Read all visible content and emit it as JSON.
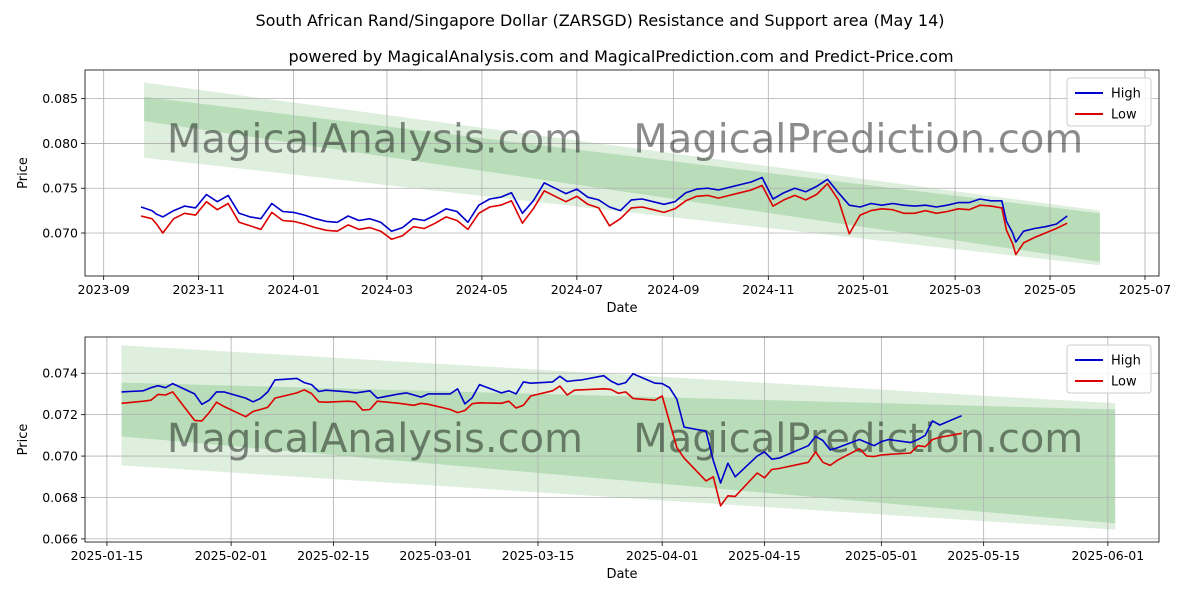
{
  "figure": {
    "title": "South African Rand/Singapore Dollar (ZARSGD) Resistance and Support area (May 14)",
    "subtitle": "powered by MagicalAnalysis.com and MagicalPrediction.com and Predict-Price.com",
    "watermarks": [
      "MagicalAnalysis.com",
      "MagicalPrediction.com"
    ]
  },
  "colors": {
    "high": "#0000cc",
    "low": "#dd0000",
    "band": "#6ab86a"
  },
  "chart_data": [
    {
      "type": "line",
      "name": "full-history",
      "xlabel": "Date",
      "ylabel": "Price",
      "x_ticks": [
        "2023-09",
        "2023-11",
        "2024-01",
        "2024-03",
        "2024-05",
        "2024-07",
        "2024-09",
        "2024-11",
        "2025-01",
        "2025-03",
        "2025-05",
        "2025-07"
      ],
      "y_ticks": [
        "0.070",
        "0.075",
        "0.080",
        "0.085"
      ],
      "xlim": [
        "2023-08-20",
        "2025-07-10"
      ],
      "ylim": [
        0.0652,
        0.0882
      ],
      "legend": {
        "position": "top-right",
        "entries": [
          "High",
          "Low"
        ]
      },
      "grid": true,
      "series": [
        {
          "name": "High",
          "x": [
            "2023-09-25",
            "2023-10-02",
            "2023-10-05",
            "2023-10-09",
            "2023-10-16",
            "2023-10-23",
            "2023-10-30",
            "2023-11-06",
            "2023-11-13",
            "2023-11-20",
            "2023-11-27",
            "2023-12-04",
            "2023-12-11",
            "2023-12-18",
            "2023-12-25",
            "2024-01-01",
            "2024-01-08",
            "2024-01-15",
            "2024-01-22",
            "2024-01-29",
            "2024-02-05",
            "2024-02-12",
            "2024-02-19",
            "2024-02-26",
            "2024-03-04",
            "2024-03-11",
            "2024-03-18",
            "2024-03-25",
            "2024-04-01",
            "2024-04-08",
            "2024-04-15",
            "2024-04-22",
            "2024-04-29",
            "2024-05-06",
            "2024-05-13",
            "2024-05-20",
            "2024-05-27",
            "2024-06-03",
            "2024-06-10",
            "2024-06-17",
            "2024-06-24",
            "2024-07-01",
            "2024-07-08",
            "2024-07-15",
            "2024-07-22",
            "2024-07-29",
            "2024-08-05",
            "2024-08-12",
            "2024-08-19",
            "2024-08-26",
            "2024-09-02",
            "2024-09-09",
            "2024-09-16",
            "2024-09-23",
            "2024-09-30",
            "2024-10-07",
            "2024-10-14",
            "2024-10-21",
            "2024-10-28",
            "2024-11-04",
            "2024-11-11",
            "2024-11-18",
            "2024-11-25",
            "2024-12-02",
            "2024-12-09",
            "2024-12-16",
            "2024-12-23",
            "2024-12-30",
            "2025-01-06",
            "2025-01-13",
            "2025-01-20",
            "2025-01-27",
            "2025-02-03",
            "2025-02-10",
            "2025-02-17",
            "2025-02-24",
            "2025-03-03",
            "2025-03-10",
            "2025-03-17",
            "2025-03-24",
            "2025-03-31",
            "2025-04-03",
            "2025-04-07",
            "2025-04-09",
            "2025-04-14",
            "2025-04-21",
            "2025-04-28",
            "2025-05-05",
            "2025-05-12"
          ],
          "values": [
            0.0729,
            0.0725,
            0.0721,
            0.0718,
            0.0725,
            0.073,
            0.0728,
            0.0743,
            0.0735,
            0.0742,
            0.0722,
            0.0718,
            0.0716,
            0.0733,
            0.0724,
            0.0723,
            0.072,
            0.0716,
            0.0713,
            0.0712,
            0.0719,
            0.0714,
            0.0716,
            0.0712,
            0.0702,
            0.0706,
            0.0716,
            0.0714,
            0.072,
            0.0727,
            0.0724,
            0.0712,
            0.0731,
            0.0738,
            0.074,
            0.0745,
            0.0722,
            0.0736,
            0.0756,
            0.075,
            0.0744,
            0.0749,
            0.074,
            0.0737,
            0.0729,
            0.0725,
            0.0737,
            0.0738,
            0.0735,
            0.0732,
            0.0735,
            0.0745,
            0.0749,
            0.075,
            0.0748,
            0.0751,
            0.0754,
            0.0757,
            0.0762,
            0.0738,
            0.0745,
            0.075,
            0.0746,
            0.0752,
            0.076,
            0.0745,
            0.0731,
            0.0729,
            0.0733,
            0.0731,
            0.0733,
            0.0731,
            0.073,
            0.0731,
            0.0729,
            0.0731,
            0.0734,
            0.0734,
            0.0738,
            0.0736,
            0.0736,
            0.0713,
            0.07,
            0.069,
            0.0702,
            0.0705,
            0.0707,
            0.071,
            0.0719
          ]
        },
        {
          "name": "Low",
          "x": [
            "2023-09-25",
            "2023-10-02",
            "2023-10-05",
            "2023-10-09",
            "2023-10-16",
            "2023-10-23",
            "2023-10-30",
            "2023-11-06",
            "2023-11-13",
            "2023-11-20",
            "2023-11-27",
            "2023-12-04",
            "2023-12-11",
            "2023-12-18",
            "2023-12-25",
            "2024-01-01",
            "2024-01-08",
            "2024-01-15",
            "2024-01-22",
            "2024-01-29",
            "2024-02-05",
            "2024-02-12",
            "2024-02-19",
            "2024-02-26",
            "2024-03-04",
            "2024-03-11",
            "2024-03-18",
            "2024-03-25",
            "2024-04-01",
            "2024-04-08",
            "2024-04-15",
            "2024-04-22",
            "2024-04-29",
            "2024-05-06",
            "2024-05-13",
            "2024-05-20",
            "2024-05-27",
            "2024-06-03",
            "2024-06-10",
            "2024-06-17",
            "2024-06-24",
            "2024-07-01",
            "2024-07-08",
            "2024-07-15",
            "2024-07-22",
            "2024-07-29",
            "2024-08-05",
            "2024-08-12",
            "2024-08-19",
            "2024-08-26",
            "2024-09-02",
            "2024-09-09",
            "2024-09-16",
            "2024-09-23",
            "2024-09-30",
            "2024-10-07",
            "2024-10-14",
            "2024-10-21",
            "2024-10-28",
            "2024-11-04",
            "2024-11-11",
            "2024-11-18",
            "2024-11-25",
            "2024-12-02",
            "2024-12-09",
            "2024-12-16",
            "2024-12-23",
            "2024-12-30",
            "2025-01-06",
            "2025-01-13",
            "2025-01-20",
            "2025-01-27",
            "2025-02-03",
            "2025-02-10",
            "2025-02-17",
            "2025-02-24",
            "2025-03-03",
            "2025-03-10",
            "2025-03-17",
            "2025-03-24",
            "2025-03-31",
            "2025-04-03",
            "2025-04-07",
            "2025-04-09",
            "2025-04-14",
            "2025-04-21",
            "2025-04-28",
            "2025-05-05",
            "2025-05-12"
          ],
          "values": [
            0.0719,
            0.0716,
            0.071,
            0.07,
            0.0716,
            0.0722,
            0.072,
            0.0735,
            0.0726,
            0.0733,
            0.0712,
            0.0708,
            0.0704,
            0.0723,
            0.0714,
            0.0713,
            0.071,
            0.0706,
            0.0703,
            0.0702,
            0.0709,
            0.0704,
            0.0706,
            0.0702,
            0.0693,
            0.0697,
            0.0707,
            0.0705,
            0.0711,
            0.0718,
            0.0714,
            0.0704,
            0.0722,
            0.0729,
            0.0731,
            0.0736,
            0.0711,
            0.0727,
            0.0747,
            0.0741,
            0.0735,
            0.0741,
            0.0732,
            0.0728,
            0.0708,
            0.0716,
            0.0728,
            0.0729,
            0.0726,
            0.0723,
            0.0727,
            0.0736,
            0.0741,
            0.0742,
            0.0739,
            0.0742,
            0.0745,
            0.0748,
            0.0753,
            0.073,
            0.0737,
            0.0742,
            0.0737,
            0.0743,
            0.0755,
            0.0737,
            0.0699,
            0.072,
            0.0725,
            0.0727,
            0.0726,
            0.0722,
            0.0722,
            0.0725,
            0.0722,
            0.0724,
            0.0727,
            0.0726,
            0.0731,
            0.073,
            0.0728,
            0.0703,
            0.0688,
            0.0676,
            0.0689,
            0.0695,
            0.07,
            0.0705,
            0.0711
          ]
        }
      ],
      "bands": [
        {
          "name": "outer",
          "x": [
            "2023-09-27",
            "2025-06-02"
          ],
          "upper": [
            0.0868,
            0.0725
          ],
          "lower": [
            0.0784,
            0.0664
          ]
        },
        {
          "name": "inner",
          "x": [
            "2023-09-27",
            "2025-06-02"
          ],
          "upper": [
            0.0852,
            0.0722
          ],
          "lower": [
            0.0825,
            0.0668
          ]
        }
      ]
    },
    {
      "type": "line",
      "name": "zoom",
      "xlabel": "Date",
      "ylabel": "Price",
      "x_ticks": [
        "2025-01-15",
        "2025-02-01",
        "2025-02-15",
        "2025-03-01",
        "2025-03-15",
        "2025-04-01",
        "2025-04-15",
        "2025-05-01",
        "2025-05-15",
        "2025-06-01"
      ],
      "y_ticks": [
        "0.066",
        "0.068",
        "0.070",
        "0.072",
        "0.074"
      ],
      "xlim": [
        "2025-01-12",
        "2025-06-08"
      ],
      "ylim": [
        0.06585,
        0.07575
      ],
      "legend": {
        "position": "top-right",
        "entries": [
          "High",
          "Low"
        ]
      },
      "grid": true,
      "series": [
        {
          "name": "High",
          "x": [
            "2025-01-17",
            "2025-01-20",
            "2025-01-21",
            "2025-01-22",
            "2025-01-23",
            "2025-01-24",
            "2025-01-27",
            "2025-01-28",
            "2025-01-29",
            "2025-01-30",
            "2025-01-31",
            "2025-02-03",
            "2025-02-04",
            "2025-02-05",
            "2025-02-06",
            "2025-02-07",
            "2025-02-10",
            "2025-02-11",
            "2025-02-12",
            "2025-02-13",
            "2025-02-14",
            "2025-02-17",
            "2025-02-18",
            "2025-02-19",
            "2025-02-20",
            "2025-02-21",
            "2025-02-24",
            "2025-02-25",
            "2025-02-26",
            "2025-02-27",
            "2025-02-28",
            "2025-03-03",
            "2025-03-04",
            "2025-03-05",
            "2025-03-06",
            "2025-03-07",
            "2025-03-10",
            "2025-03-11",
            "2025-03-12",
            "2025-03-13",
            "2025-03-14",
            "2025-03-17",
            "2025-03-18",
            "2025-03-19",
            "2025-03-20",
            "2025-03-21",
            "2025-03-24",
            "2025-03-25",
            "2025-03-26",
            "2025-03-27",
            "2025-03-28",
            "2025-03-31",
            "2025-04-01",
            "2025-04-02",
            "2025-04-03",
            "2025-04-04",
            "2025-04-07",
            "2025-04-08",
            "2025-04-09",
            "2025-04-10",
            "2025-04-11",
            "2025-04-14",
            "2025-04-15",
            "2025-04-16",
            "2025-04-17",
            "2025-04-21",
            "2025-04-22",
            "2025-04-23",
            "2025-04-24",
            "2025-04-25",
            "2025-04-28",
            "2025-04-29",
            "2025-04-30",
            "2025-05-01",
            "2025-05-02",
            "2025-05-05",
            "2025-05-06",
            "2025-05-07",
            "2025-05-08",
            "2025-05-09",
            "2025-05-12"
          ],
          "values": [
            0.0731,
            0.07315,
            0.0733,
            0.0734,
            0.0733,
            0.0735,
            0.073,
            0.0725,
            0.0727,
            0.0731,
            0.0731,
            0.0728,
            0.07262,
            0.07278,
            0.0731,
            0.07368,
            0.07375,
            0.07355,
            0.07345,
            0.07312,
            0.07318,
            0.0731,
            0.07305,
            0.0731,
            0.07315,
            0.0728,
            0.073,
            0.07305,
            0.07295,
            0.07285,
            0.073,
            0.073,
            0.07325,
            0.07252,
            0.07282,
            0.07345,
            0.07305,
            0.07315,
            0.073,
            0.07358,
            0.07352,
            0.07358,
            0.07385,
            0.0736,
            0.07365,
            0.07368,
            0.07388,
            0.07362,
            0.07345,
            0.07355,
            0.07398,
            0.07352,
            0.0735,
            0.0733,
            0.07275,
            0.0714,
            0.0712,
            0.06978,
            0.0687,
            0.06965,
            0.069,
            0.07,
            0.0702,
            0.06985,
            0.0699,
            0.0705,
            0.07095,
            0.07075,
            0.0703,
            0.0704,
            0.0708,
            0.07065,
            0.0705,
            0.0707,
            0.0708,
            0.07065,
            0.0708,
            0.071,
            0.0717,
            0.0715,
            0.07195
          ]
        },
        {
          "name": "Low",
          "x": [
            "2025-01-17",
            "2025-01-20",
            "2025-01-21",
            "2025-01-22",
            "2025-01-23",
            "2025-01-24",
            "2025-01-27",
            "2025-01-28",
            "2025-01-29",
            "2025-01-30",
            "2025-01-31",
            "2025-02-03",
            "2025-02-04",
            "2025-02-05",
            "2025-02-06",
            "2025-02-07",
            "2025-02-10",
            "2025-02-11",
            "2025-02-12",
            "2025-02-13",
            "2025-02-14",
            "2025-02-17",
            "2025-02-18",
            "2025-02-19",
            "2025-02-20",
            "2025-02-21",
            "2025-02-24",
            "2025-02-25",
            "2025-02-26",
            "2025-02-27",
            "2025-02-28",
            "2025-03-03",
            "2025-03-04",
            "2025-03-05",
            "2025-03-06",
            "2025-03-07",
            "2025-03-10",
            "2025-03-11",
            "2025-03-12",
            "2025-03-13",
            "2025-03-14",
            "2025-03-17",
            "2025-03-18",
            "2025-03-19",
            "2025-03-20",
            "2025-03-21",
            "2025-03-24",
            "2025-03-25",
            "2025-03-26",
            "2025-03-27",
            "2025-03-28",
            "2025-03-31",
            "2025-04-01",
            "2025-04-02",
            "2025-04-03",
            "2025-04-04",
            "2025-04-07",
            "2025-04-08",
            "2025-04-09",
            "2025-04-10",
            "2025-04-11",
            "2025-04-14",
            "2025-04-15",
            "2025-04-16",
            "2025-04-17",
            "2025-04-21",
            "2025-04-22",
            "2025-04-23",
            "2025-04-24",
            "2025-04-25",
            "2025-04-28",
            "2025-04-29",
            "2025-04-30",
            "2025-05-01",
            "2025-05-02",
            "2025-05-05",
            "2025-05-06",
            "2025-05-07",
            "2025-05-08",
            "2025-05-09",
            "2025-05-12"
          ],
          "values": [
            0.07255,
            0.07265,
            0.0727,
            0.07298,
            0.07295,
            0.0731,
            0.07172,
            0.0717,
            0.0721,
            0.0726,
            0.0724,
            0.0719,
            0.07215,
            0.07225,
            0.07235,
            0.0728,
            0.07305,
            0.0732,
            0.07302,
            0.07262,
            0.0726,
            0.07265,
            0.07262,
            0.07222,
            0.07225,
            0.07265,
            0.07255,
            0.0725,
            0.07245,
            0.07255,
            0.0725,
            0.07225,
            0.0721,
            0.0722,
            0.07253,
            0.07257,
            0.07255,
            0.07265,
            0.07232,
            0.07245,
            0.0729,
            0.07315,
            0.07338,
            0.07295,
            0.07318,
            0.0732,
            0.07325,
            0.07322,
            0.07303,
            0.0731,
            0.07278,
            0.0727,
            0.0729,
            0.07165,
            0.07042,
            0.0699,
            0.0688,
            0.069,
            0.0676,
            0.06808,
            0.06805,
            0.06918,
            0.06895,
            0.06935,
            0.0694,
            0.0697,
            0.0702,
            0.0697,
            0.06955,
            0.0698,
            0.07035,
            0.07,
            0.06998,
            0.07005,
            0.07008,
            0.07015,
            0.0705,
            0.07045,
            0.0708,
            0.0709,
            0.0711
          ]
        }
      ],
      "bands": [
        {
          "name": "outer",
          "x": [
            "2025-01-17",
            "2025-06-02"
          ],
          "upper": [
            0.07535,
            0.07255
          ],
          "lower": [
            0.06955,
            0.06645
          ]
        },
        {
          "name": "inner",
          "x": [
            "2025-01-17",
            "2025-06-02"
          ],
          "upper": [
            0.07355,
            0.07225
          ],
          "lower": [
            0.07095,
            0.06675
          ]
        }
      ]
    }
  ]
}
